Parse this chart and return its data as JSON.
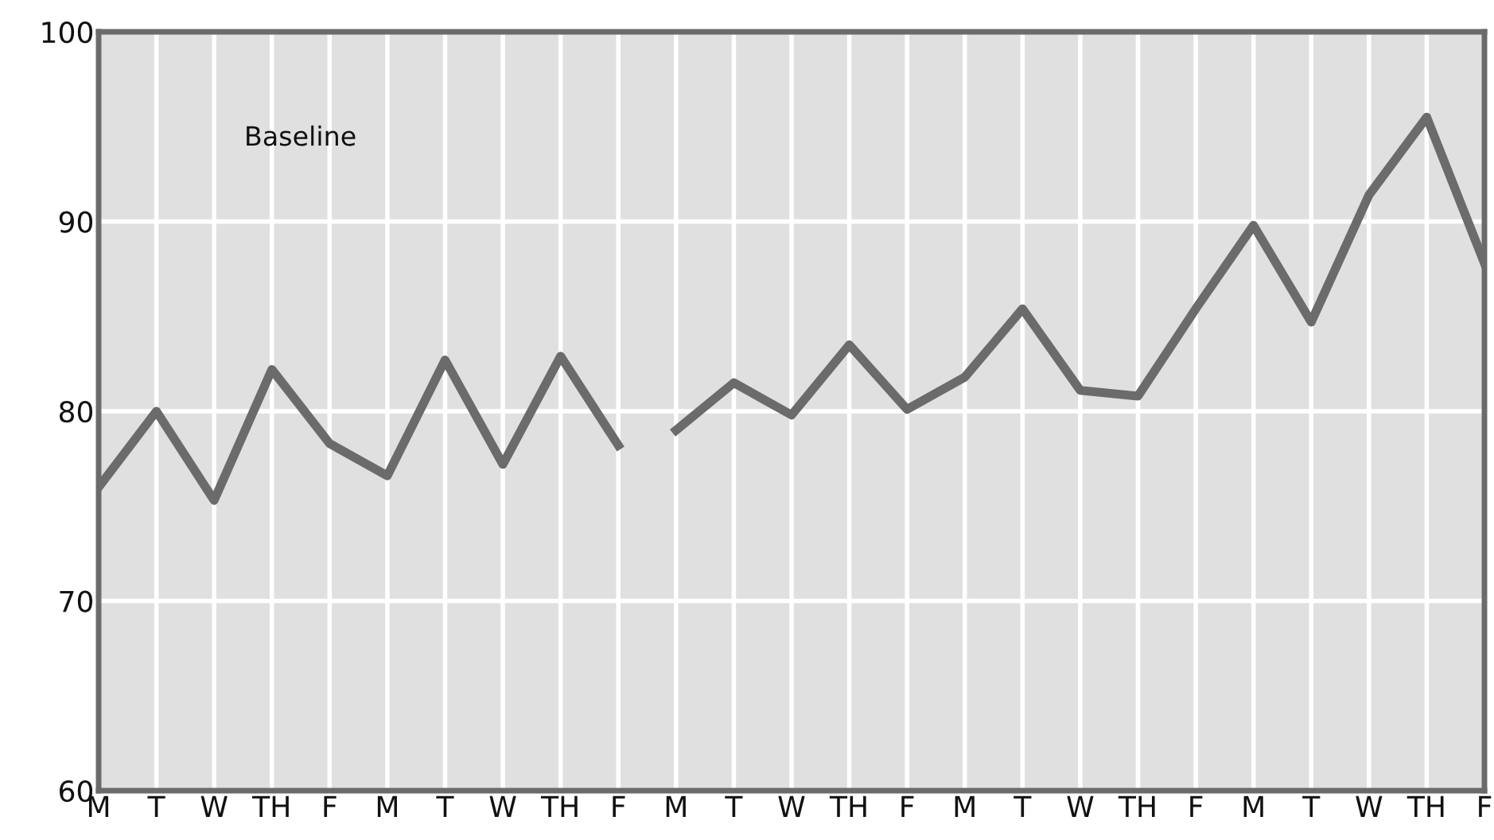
{
  "chart_data": {
    "type": "line",
    "categories": [
      "M",
      "T",
      "W",
      "TH",
      "F",
      "M",
      "T",
      "W",
      "TH",
      "F",
      "M",
      "T",
      "W",
      "TH",
      "F",
      "M",
      "T",
      "W",
      "TH",
      "F",
      "M",
      "T",
      "W",
      "TH",
      "F"
    ],
    "series": [
      {
        "color": "#6b6b6b",
        "values": [
          76.0,
          80.0,
          75.3,
          82.2,
          78.3,
          76.6,
          82.7,
          77.2,
          82.9,
          78.2,
          null,
          null,
          null,
          null,
          null,
          null,
          null,
          null,
          null,
          null,
          null,
          null,
          null,
          null,
          null
        ]
      },
      {
        "color": "#6b6b6b",
        "values": [
          null,
          null,
          null,
          null,
          null,
          null,
          null,
          null,
          null,
          null,
          79.0,
          81.5,
          79.8,
          83.5,
          80.1,
          81.8,
          85.4,
          81.1,
          80.8,
          85.4,
          89.8,
          84.7,
          91.4,
          95.5,
          87.8
        ]
      }
    ],
    "ylim": [
      60,
      100
    ],
    "yticks": [
      60,
      70,
      80,
      90,
      100
    ],
    "grid": true,
    "marker": "none",
    "line_style": "solid",
    "annotations": [
      "Baseline"
    ]
  }
}
